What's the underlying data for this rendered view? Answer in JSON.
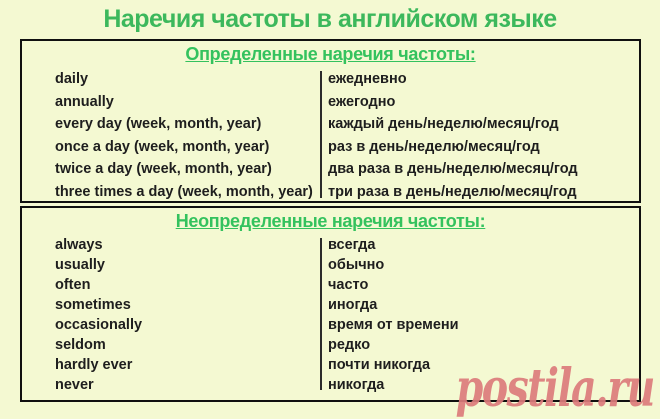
{
  "page": {
    "title": "Наречия частоты в английском языке",
    "background": "#f4f9d2",
    "accent_green": "#3cb85c",
    "text_color": "#1e1e1e",
    "border_color": "#101010",
    "watermark": "postila.ru",
    "watermark_color": "#db7b7b"
  },
  "definite": {
    "heading": "Определенные наречия частоты:",
    "rows": [
      {
        "en": "daily",
        "ru": "ежедневно"
      },
      {
        "en": "annually",
        "ru": "ежегодно"
      },
      {
        "en": "every day (week, month, year)",
        "ru": "каждый день/неделю/месяц/год"
      },
      {
        "en": "once a day (week, month, year)",
        "ru": "раз в день/неделю/месяц/год"
      },
      {
        "en": "twice a day (week, month, year)",
        "ru": "два раза в день/неделю/месяц/год"
      },
      {
        "en": "three times a day (week, month, year)",
        "ru": "три раза в день/неделю/месяц/год"
      }
    ]
  },
  "indefinite": {
    "heading": "Неопределенные наречия частоты:",
    "rows": [
      {
        "en": "always",
        "ru": "всегда"
      },
      {
        "en": "usually",
        "ru": "обычно"
      },
      {
        "en": "often",
        "ru": "часто"
      },
      {
        "en": "sometimes",
        "ru": "иногда"
      },
      {
        "en": "occasionally",
        "ru": "время от времени"
      },
      {
        "en": "seldom",
        "ru": "редко"
      },
      {
        "en": "hardly ever",
        "ru": "почти никогда"
      },
      {
        "en": "never",
        "ru": "никогда"
      }
    ]
  }
}
